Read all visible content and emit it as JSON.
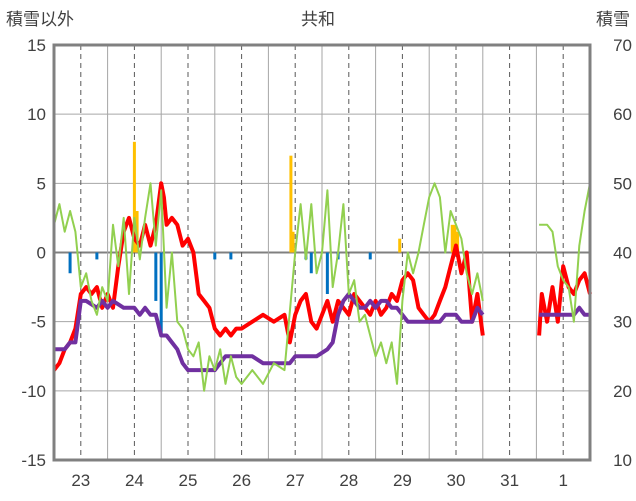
{
  "chart_data": {
    "type": "line",
    "title": "共和",
    "ylabel_left": "積雪以外",
    "ylabel_right": "積雪",
    "ylim_left": [
      -15,
      15
    ],
    "ylim_right": [
      10,
      70
    ],
    "yticks_left": [
      "15",
      "10",
      "5",
      "0",
      "-5",
      "-10",
      "-15"
    ],
    "yticks_right": [
      "70",
      "60",
      "50",
      "40",
      "30",
      "20",
      "10"
    ],
    "x_range": [
      22.5,
      1.5
    ],
    "x_labels": [
      "23",
      "24",
      "25",
      "26",
      "27",
      "28",
      "29",
      "30",
      "31",
      "1"
    ],
    "grid": true,
    "colors": {
      "temperature": "#ff0000",
      "snow_depth": "#7030a0",
      "snowfall": "#ffc000",
      "precipitation": "#0070c0",
      "daylight": "#92d050",
      "frame": "#808080"
    },
    "series": [
      {
        "key": "temperature",
        "axis": "left",
        "x": [
          22.5,
          22.6,
          22.7,
          22.8,
          22.9,
          23.0,
          23.1,
          23.2,
          23.3,
          23.4,
          23.5,
          23.6,
          23.7,
          23.8,
          23.9,
          24.0,
          24.1,
          24.2,
          24.3,
          24.4,
          24.5,
          24.55,
          24.6,
          24.7,
          24.8,
          24.9,
          25.0,
          25.1,
          25.2,
          25.3,
          25.4,
          25.5,
          25.6,
          25.7,
          25.8,
          25.9,
          26.0,
          26.2,
          26.4,
          26.6,
          26.8,
          26.9,
          27.0,
          27.1,
          27.2,
          27.3,
          27.4,
          27.5,
          27.6,
          27.7,
          27.8,
          27.9,
          28.0,
          28.1,
          28.2,
          28.3,
          28.4,
          28.5,
          28.6,
          28.7,
          28.8,
          28.9,
          29.0,
          29.1,
          29.2,
          29.3,
          29.4,
          29.5,
          29.6,
          29.7,
          29.8,
          29.9,
          30.0,
          30.1,
          30.2,
          30.3,
          30.4,
          30.5,
          31.55,
          31.6,
          31.7,
          31.8,
          31.9,
          32.0,
          32.1,
          32.2,
          32.3,
          32.4,
          32.5
        ],
        "y": [
          -8.5,
          -8.0,
          -7.0,
          -6.5,
          -5.5,
          -3.0,
          -2.5,
          -3.0,
          -2.5,
          -4.0,
          -3.0,
          -4.0,
          -1.0,
          1.5,
          2.5,
          1.0,
          0.5,
          2.0,
          0.5,
          2.0,
          5.0,
          4.0,
          2.0,
          2.5,
          2.0,
          0.5,
          1.0,
          0.0,
          -3.0,
          -3.5,
          -4.0,
          -5.5,
          -6.0,
          -5.5,
          -6.0,
          -5.5,
          -5.5,
          -5.0,
          -4.5,
          -5.0,
          -4.5,
          -6.5,
          -4.5,
          -3.5,
          -3.0,
          -5.0,
          -5.5,
          -4.5,
          -3.5,
          -5.0,
          -3.5,
          -4.0,
          -4.5,
          -3.0,
          -3.5,
          -4.0,
          -4.5,
          -3.5,
          -4.5,
          -4.0,
          -3.0,
          -3.5,
          -2.0,
          -1.5,
          -2.0,
          -4.0,
          -4.5,
          -5.0,
          -4.5,
          -3.5,
          -2.5,
          -1.0,
          0.5,
          -1.5,
          0.0,
          -5.0,
          -3.0,
          -6.0,
          -6.0,
          -3.0,
          -5.0,
          -2.5,
          -5.0,
          -1.0,
          -2.5,
          -3.0,
          -2.0,
          -1.5,
          -3.0
        ]
      },
      {
        "key": "snow_depth",
        "axis": "right",
        "x": [
          22.5,
          22.7,
          22.8,
          22.9,
          23.0,
          23.1,
          23.3,
          23.4,
          23.5,
          23.6,
          23.8,
          24.0,
          24.1,
          24.2,
          24.3,
          24.4,
          24.5,
          24.6,
          24.7,
          24.8,
          24.9,
          25.0,
          25.2,
          25.3,
          25.4,
          25.5,
          25.6,
          25.7,
          25.8,
          26.0,
          26.2,
          26.4,
          26.6,
          26.8,
          26.9,
          27.0,
          27.2,
          27.4,
          27.6,
          27.7,
          27.8,
          27.9,
          28.0,
          28.1,
          28.2,
          28.3,
          28.4,
          28.5,
          28.6,
          28.7,
          28.8,
          28.9,
          29.0,
          29.1,
          29.2,
          29.3,
          29.5,
          29.7,
          29.8,
          29.9,
          30.0,
          30.1,
          30.2,
          30.3,
          30.4,
          30.5,
          31.55,
          31.8,
          32.0,
          32.2,
          32.3,
          32.4,
          32.5
        ],
        "y": [
          26,
          26,
          27,
          27,
          33,
          33,
          32,
          33,
          32,
          33,
          32,
          32,
          31,
          32,
          31,
          31,
          28,
          28,
          27,
          26,
          24,
          23,
          23,
          23,
          23,
          23,
          24,
          25,
          25,
          25,
          25,
          24,
          24,
          24,
          24,
          25,
          25,
          25,
          26,
          27,
          31,
          33,
          34,
          33,
          32,
          32,
          33,
          32,
          33,
          33,
          32,
          32,
          31,
          30,
          30,
          30,
          30,
          30,
          31,
          31,
          31,
          30,
          30,
          30,
          32,
          31,
          31,
          31,
          31,
          31,
          32,
          31,
          31
        ]
      },
      {
        "key": "daylight",
        "axis": "left",
        "x": [
          22.5,
          22.6,
          22.7,
          22.8,
          22.9,
          23.0,
          23.1,
          23.2,
          23.3,
          23.4,
          23.5,
          23.6,
          23.7,
          23.8,
          23.9,
          24.0,
          24.1,
          24.2,
          24.3,
          24.4,
          24.5,
          24.6,
          24.7,
          24.8,
          24.9,
          25.0,
          25.1,
          25.2,
          25.3,
          25.4,
          25.5,
          25.6,
          25.7,
          25.8,
          25.9,
          26.0,
          26.2,
          26.4,
          26.6,
          26.8,
          27.0,
          27.1,
          27.2,
          27.3,
          27.4,
          27.5,
          27.6,
          27.7,
          27.8,
          27.9,
          28.0,
          28.1,
          28.2,
          28.3,
          28.4,
          28.5,
          28.6,
          28.7,
          28.8,
          28.9,
          29.0,
          29.1,
          29.2,
          29.3,
          29.4,
          29.5,
          29.6,
          29.7,
          29.8,
          29.9,
          30.0,
          30.1,
          30.2,
          30.3,
          30.4,
          30.5,
          31.55,
          31.7,
          31.8,
          31.9,
          32.0,
          32.1,
          32.2,
          32.3,
          32.4,
          32.5
        ],
        "y": [
          2.0,
          3.5,
          1.5,
          3.0,
          1.5,
          -2.5,
          -1.5,
          -3.5,
          -4.5,
          -2.5,
          -3.5,
          2.0,
          -1.0,
          2.5,
          -3.0,
          2.5,
          -0.5,
          2.5,
          5.0,
          0.5,
          4.5,
          -4.0,
          0.0,
          -5.0,
          -5.5,
          -7.0,
          -7.5,
          -6.5,
          -10.0,
          -7.5,
          -8.5,
          -7.0,
          -9.5,
          -7.5,
          -9.0,
          -9.5,
          -8.5,
          -9.5,
          -8.0,
          -8.5,
          0.0,
          3.5,
          -0.5,
          3.5,
          -1.5,
          0.0,
          4.5,
          -2.5,
          0.0,
          3.5,
          -3.0,
          -2.0,
          -5.0,
          -4.5,
          -6.0,
          -7.5,
          -6.5,
          -8.0,
          -6.5,
          -9.5,
          -3.5,
          0.0,
          -1.5,
          0.0,
          2.0,
          4.0,
          5.0,
          4.0,
          0.0,
          3.0,
          2.0,
          1.0,
          -1.5,
          -3.0,
          -1.5,
          -3.5,
          2.0,
          2.0,
          1.5,
          -1.0,
          -2.0,
          -2.5,
          -5.0,
          0.5,
          3.0,
          5.0
        ]
      }
    ],
    "bars": [
      {
        "key": "snowfall",
        "axis": "left",
        "x": [
          24.0,
          24.05,
          26.92,
          26.96,
          28.95,
          29.93,
          29.98,
          30.03
        ],
        "y": [
          8.0,
          3.0,
          7.0,
          1.5,
          1.0,
          2.0,
          2.0,
          1.5
        ]
      },
      {
        "key": "precipitation",
        "axis": "left",
        "x": [
          22.8,
          23.3,
          24.4,
          24.5,
          25.5,
          25.8,
          27.2,
          27.3,
          27.6,
          27.8,
          28.4
        ],
        "y": [
          -1.5,
          -0.5,
          -3.5,
          -6.0,
          -0.5,
          -0.5,
          -0.5,
          -1.5,
          -3.0,
          -0.5,
          -0.5
        ]
      }
    ]
  }
}
